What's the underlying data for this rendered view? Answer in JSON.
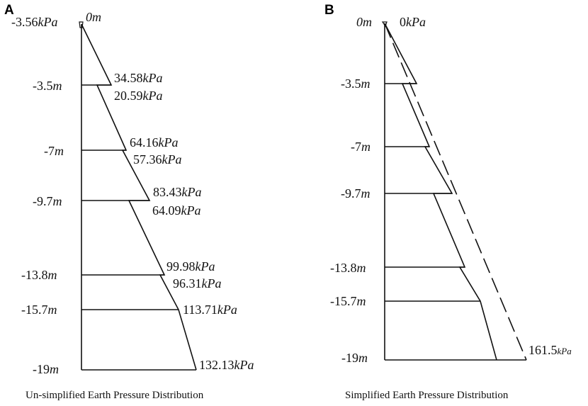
{
  "panel_a": {
    "letter": "A",
    "caption": "Un-simplified Earth Pressure Distribution",
    "depths": [
      {
        "num": "-3.5",
        "unit": "m"
      },
      {
        "num": "-7",
        "unit": "m"
      },
      {
        "num": "-9.7",
        "unit": "m"
      },
      {
        "num": "-13.8",
        "unit": "m"
      },
      {
        "num": "-15.7",
        "unit": "m"
      },
      {
        "num": "-19",
        "unit": "m"
      }
    ],
    "top_depth": "0m",
    "top_pressure": {
      "num": "-3.56",
      "unit": "kPa"
    },
    "pressures": [
      {
        "num": "34.58",
        "unit": "kPa"
      },
      {
        "num": "20.59",
        "unit": "kPa"
      },
      {
        "num": "64.16",
        "unit": "kPa"
      },
      {
        "num": "57.36",
        "unit": "kPa"
      },
      {
        "num": "83.43",
        "unit": "kPa"
      },
      {
        "num": "64.09",
        "unit": "kPa"
      },
      {
        "num": "99.98",
        "unit": "kPa"
      },
      {
        "num": "96.31",
        "unit": "kPa"
      },
      {
        "num": "113.71",
        "unit": "kPa"
      },
      {
        "num": "132.13",
        "unit": "kPa"
      }
    ]
  },
  "panel_b": {
    "letter": "B",
    "caption": "Simplified Earth Pressure Distribution",
    "top_depth": "0m",
    "top_pressure": {
      "num": "0",
      "unit": "kPa"
    },
    "depths": [
      {
        "num": "-3.5",
        "unit": "m"
      },
      {
        "num": "-7",
        "unit": "m"
      },
      {
        "num": "-9.7",
        "unit": "m"
      },
      {
        "num": "-13.8",
        "unit": "m"
      },
      {
        "num": "-15.7",
        "unit": "m"
      },
      {
        "num": "-19",
        "unit": "m"
      }
    ],
    "bottom_pressure": {
      "num": "161.5",
      "unit": "kPa"
    }
  }
}
